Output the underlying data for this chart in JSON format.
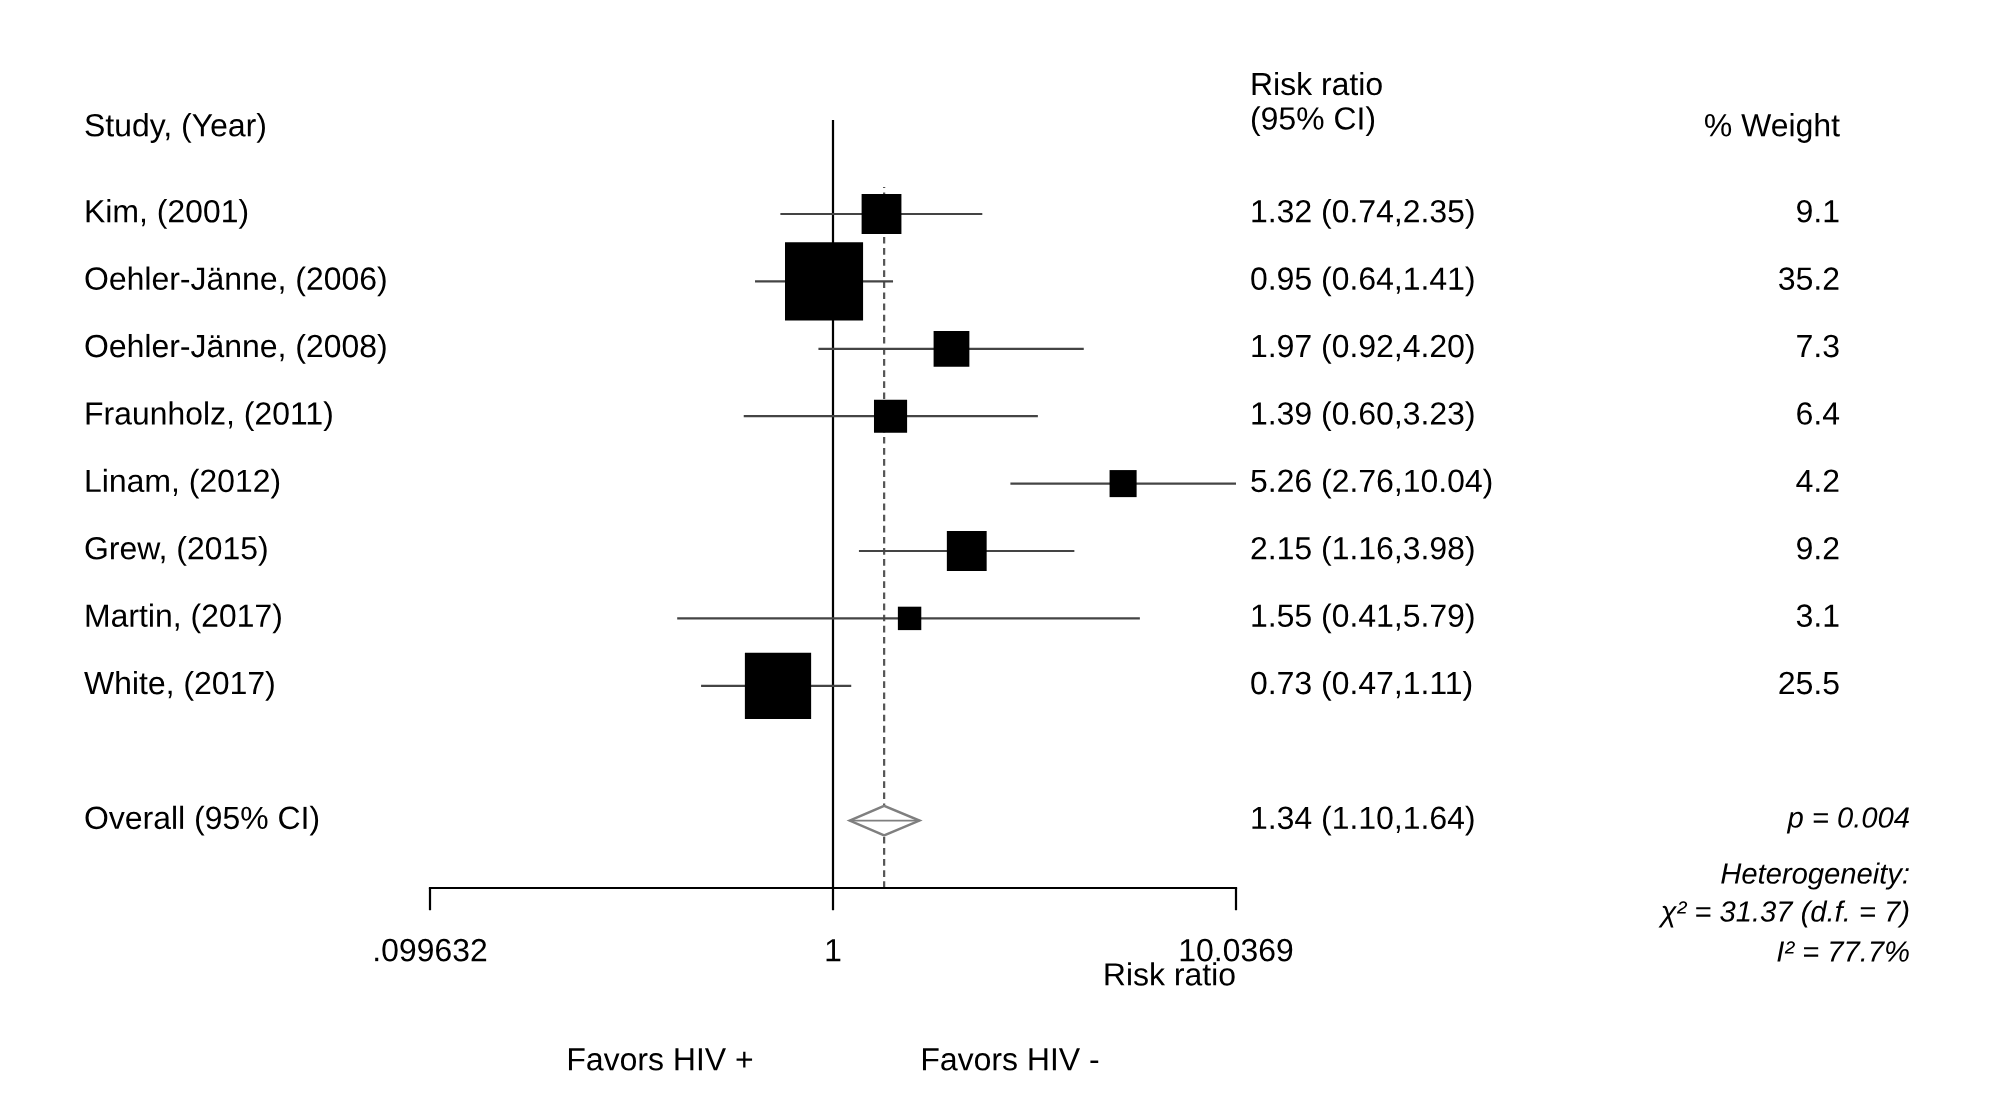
{
  "chart_data": {
    "type": "bubble",
    "orientation": "horizontal",
    "xlabel": "Risk ratio",
    "categories": [
      "Kim, (2001)",
      "Oehler-Jänne, (2006)",
      "Oehler-Jänne, (2008)",
      "Fraunholz, (2011)",
      "Linam, (2012)",
      "Grew, (2015)",
      "Martin, (2017)",
      "White, (2017)",
      null,
      "Overall (95% CI)"
    ],
    "series": [
      {
        "marker": "square",
        "color": "#000000",
        "values": [
          1.32,
          0.95,
          1.97,
          1.39,
          5.26,
          2.15,
          1.55,
          0.73,
          null,
          null
        ],
        "errors": [
          [
            0.74,
            2.35
          ],
          [
            0.64,
            1.41
          ],
          [
            0.92,
            4.2
          ],
          [
            0.6,
            3.23
          ],
          [
            2.76,
            10.04
          ],
          [
            1.16,
            3.98
          ],
          [
            0.41,
            5.79
          ],
          [
            0.47,
            1.11
          ],
          null,
          null
        ],
        "sizes": [
          0.26,
          1,
          0.21,
          0.18,
          0.12,
          0.26,
          0.09,
          0.72,
          null,
          null
        ]
      },
      {
        "type": "scatter",
        "marker": "diamond",
        "color": "#7f7f7f",
        "values": [
          null,
          null,
          null,
          null,
          null,
          null,
          null,
          null,
          null,
          1.34
        ],
        "errors": [
          null,
          null,
          null,
          null,
          null,
          null,
          null,
          null,
          null,
          [
            1.1,
            1.64
          ]
        ]
      }
    ],
    "log": "x",
    "xlim": [
      0.099632,
      10.0369
    ],
    "xticks": [
      {
        "value": 0.099632,
        "label": ".099632"
      },
      1,
      10.0369
    ],
    "ref_lines": [
      {
        "axis": "x",
        "value": 1,
        "line_style": "solid",
        "color": "#000000"
      },
      {
        "axis": "x",
        "value": 1.34,
        "line_style": "dashed",
        "color": "#555555"
      }
    ],
    "annotations": [
      "Study, (Year)",
      "Risk ratio\n(95% CI)",
      "% Weight",
      "p = 0.004",
      "Heterogeneity:",
      "χ² = 31.37 (d.f. = 7)",
      "I² = 77.7%",
      "Favors HIV +",
      "Favors HIV -",
      "1.32 (0.74,2.35)",
      "0.95 (0.64,1.41)",
      "1.97 (0.92,4.20)",
      "1.39 (0.60,3.23)",
      "5.26 (2.76,10.04)",
      "2.15 (1.16,3.98)",
      "1.55 (0.41,5.79)",
      "0.73 (0.47,1.11)",
      "1.34 (1.10,1.64)",
      "9.1",
      "35.2",
      "7.3",
      "6.4",
      "4.2",
      "9.2",
      "3.1",
      "25.5"
    ],
    "grid": false,
    "legend": false
  }
}
